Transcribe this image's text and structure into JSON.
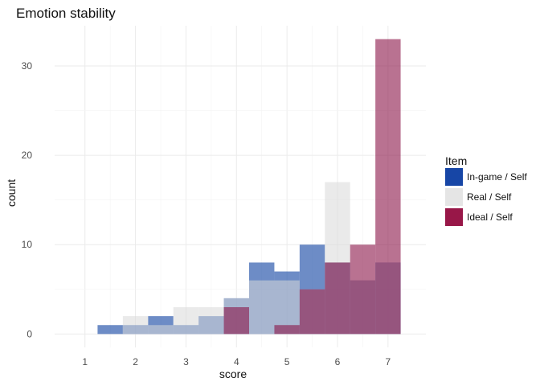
{
  "chart_data": {
    "type": "histogram",
    "title": "Emotion stability",
    "xlabel": "score",
    "ylabel": "count",
    "x_ticks": [
      1,
      2,
      3,
      4,
      5,
      6,
      7
    ],
    "y_ticks": [
      0,
      10,
      20,
      30
    ],
    "xlim": [
      0.4,
      7.75
    ],
    "ylim": [
      -1.5,
      34.5
    ],
    "bin_width": 0.5,
    "bin_centers": [
      1.5,
      2.0,
      2.5,
      3.0,
      3.5,
      4.0,
      4.5,
      5.0,
      5.5,
      6.0,
      6.5,
      7.0
    ],
    "legend": {
      "title": "Item",
      "position": "right"
    },
    "grid": true,
    "series": [
      {
        "name": "In-game / Self",
        "color": "#1f4fa8",
        "opacity": 0.65,
        "values": [
          1,
          1,
          2,
          1,
          2,
          4,
          8,
          7,
          10,
          8,
          6,
          8
        ]
      },
      {
        "name": "Real / Self",
        "color": "#d9d9d9",
        "opacity": 0.55,
        "values": [
          0,
          2,
          1,
          3,
          3,
          4,
          6,
          6,
          5,
          17,
          6,
          8
        ]
      },
      {
        "name": "Ideal / Self",
        "color": "#8b1447",
        "opacity": 0.6,
        "values": [
          0,
          0,
          0,
          0,
          0,
          3,
          0,
          1,
          5,
          8,
          10,
          33
        ]
      }
    ],
    "legend_colors": [
      "#1746a6",
      "#e5e5e5",
      "#981748"
    ]
  }
}
